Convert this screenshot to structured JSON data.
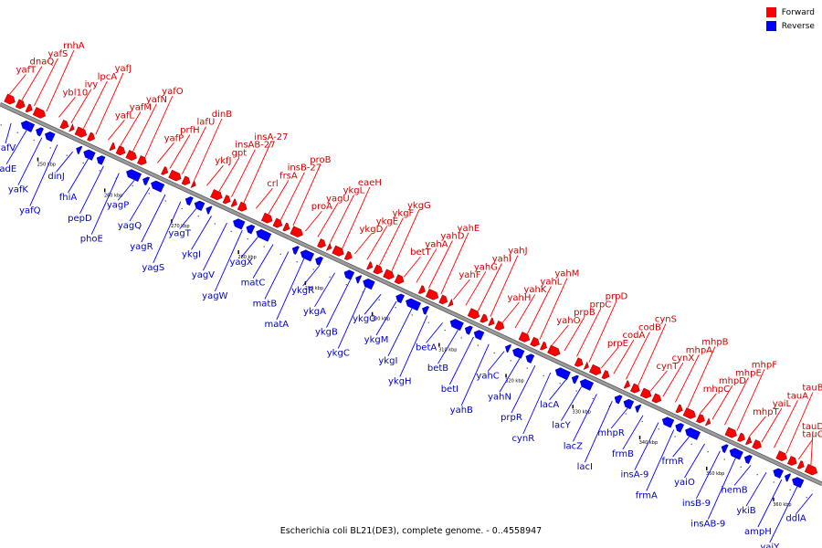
{
  "caption": "Escherichia coli BL21(DE3), complete genome. - 0..4558947",
  "legend": [
    {
      "label": "Forward",
      "color": "#ff0000"
    },
    {
      "label": "Reverse",
      "color": "#0000ff"
    }
  ],
  "colors": {
    "forward": "#ff0000",
    "reverse": "#0000ff",
    "backbone": "#9a9a9a"
  },
  "ticks": [
    "250 kbp",
    "260 kbp",
    "270 kbp",
    "280 kbp",
    "290 kbp",
    "300 kbp",
    "310 kbp",
    "320 kbp",
    "330 kbp",
    "340 kbp",
    "350 kbp",
    "360 kbp"
  ],
  "forward_labels": [
    "yafT",
    "dnaQ",
    "yafS",
    "rnhA",
    "ybl10",
    "ivy",
    "lpcA",
    "yafJ",
    "yafL",
    "yafM",
    "yafN",
    "yafO",
    "yafP",
    "prfH",
    "lafU",
    "dinB",
    "ykfJ",
    "gpt",
    "insAB-27",
    "insA-27",
    "crl",
    "frsA",
    "insB-27",
    "proB",
    "proA",
    "yagU",
    "ykgL",
    "eaeH",
    "ykgD",
    "ykgE",
    "ykgF",
    "ykgG",
    "betT",
    "yahA",
    "yahD",
    "yahE",
    "yahF",
    "yahG",
    "yahI",
    "yahJ",
    "yahH",
    "yahK",
    "yahL",
    "yahM",
    "yahO",
    "prpB",
    "prpC",
    "prpD",
    "prpE",
    "codA",
    "codB",
    "cynS",
    "cynT",
    "cynX",
    "mhpA",
    "mhpB",
    "mhpC",
    "mhpD",
    "mhpE",
    "mhpF",
    "mhpT",
    "yaiL",
    "tauA",
    "tauB",
    "tauC",
    "tauD"
  ],
  "reverse_labels": [
    "yafV",
    "fadE",
    "yafK",
    "yafQ",
    "dinJ",
    "fhiA",
    "pepD",
    "phoE",
    "yagP",
    "yagQ",
    "yagR",
    "yagS",
    "yagT",
    "ykgI",
    "yagV",
    "yagW",
    "yagX",
    "matC",
    "matB",
    "matA",
    "ykgR",
    "ykgA",
    "ykgB",
    "ykgC",
    "ykgO",
    "ykgM",
    "ykgI",
    "ykgH",
    "betA",
    "betB",
    "betI",
    "yahB",
    "yahC",
    "yahN",
    "prpR",
    "cynR",
    "lacA",
    "lacY",
    "lacZ",
    "lacI",
    "mhpR",
    "frmB",
    "insA-9",
    "frmA",
    "frmR",
    "yaiO",
    "insB-9",
    "insAB-9",
    "hemB",
    "ykiB",
    "ampH",
    "yaiY",
    "ddlA"
  ]
}
